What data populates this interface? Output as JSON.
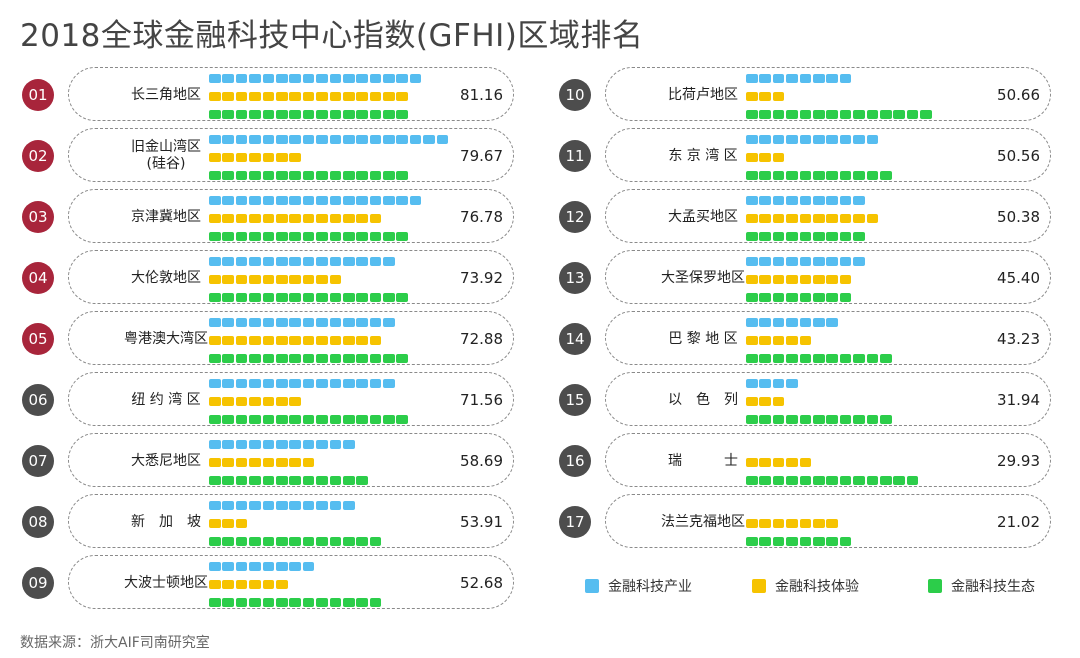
{
  "title": "2018全球金融科技中心指数(GFHI)区域排名",
  "source": "数据来源：浙大AIF司南研究室",
  "colors": {
    "industry": "#56bdf0",
    "experience": "#f6c300",
    "ecosystem": "#2ccd4a",
    "badge_top": "#a8253b",
    "badge_other": "#4d4d4d"
  },
  "legend": [
    {
      "label": "金融科技产业",
      "color": "#56bdf0"
    },
    {
      "label": "金融科技体验",
      "color": "#f6c300"
    },
    {
      "label": "金融科技生态",
      "color": "#2ccd4a"
    }
  ],
  "chart_data": {
    "type": "bar",
    "title": "2018全球金融科技中心指数(GFHI)区域排名",
    "series": [
      {
        "name": "金融科技产业",
        "values": [
          16,
          18,
          16,
          14,
          14,
          14,
          11,
          11,
          8,
          8,
          10,
          9,
          9,
          7,
          4,
          0,
          0
        ]
      },
      {
        "name": "金融科技体验",
        "values": [
          15,
          7,
          13,
          10,
          13,
          7,
          8,
          3,
          6,
          3,
          3,
          10,
          8,
          5,
          3,
          5,
          7
        ]
      },
      {
        "name": "金融科技生态",
        "values": [
          15,
          15,
          15,
          15,
          15,
          15,
          12,
          13,
          13,
          14,
          11,
          9,
          8,
          11,
          11,
          13,
          8
        ]
      }
    ],
    "rows": [
      {
        "rank": "01",
        "name": "长三角地区",
        "score": "81.16"
      },
      {
        "rank": "02",
        "name": "旧金山湾区\n(硅谷)",
        "score": "79.67"
      },
      {
        "rank": "03",
        "name": "京津冀地区",
        "score": "76.78"
      },
      {
        "rank": "04",
        "name": "大伦敦地区",
        "score": "73.92"
      },
      {
        "rank": "05",
        "name": "粤港澳大湾区",
        "score": "72.88"
      },
      {
        "rank": "06",
        "name": "纽 约 湾 区",
        "score": "71.56"
      },
      {
        "rank": "07",
        "name": "大悉尼地区",
        "score": "58.69"
      },
      {
        "rank": "08",
        "name": "新　加　坡",
        "score": "53.91"
      },
      {
        "rank": "09",
        "name": "大波士顿地区",
        "score": "52.68"
      },
      {
        "rank": "10",
        "name": "比荷卢地区",
        "score": "50.66"
      },
      {
        "rank": "11",
        "name": "东 京 湾 区",
        "score": "50.56"
      },
      {
        "rank": "12",
        "name": "大孟买地区",
        "score": "50.38"
      },
      {
        "rank": "13",
        "name": "大圣保罗地区",
        "score": "45.40"
      },
      {
        "rank": "14",
        "name": "巴 黎 地 区",
        "score": "43.23"
      },
      {
        "rank": "15",
        "name": "以　色　列",
        "score": "31.94"
      },
      {
        "rank": "16",
        "name": "瑞　　　士",
        "score": "29.93"
      },
      {
        "rank": "17",
        "name": "法兰克福地区",
        "score": "21.02"
      }
    ]
  }
}
